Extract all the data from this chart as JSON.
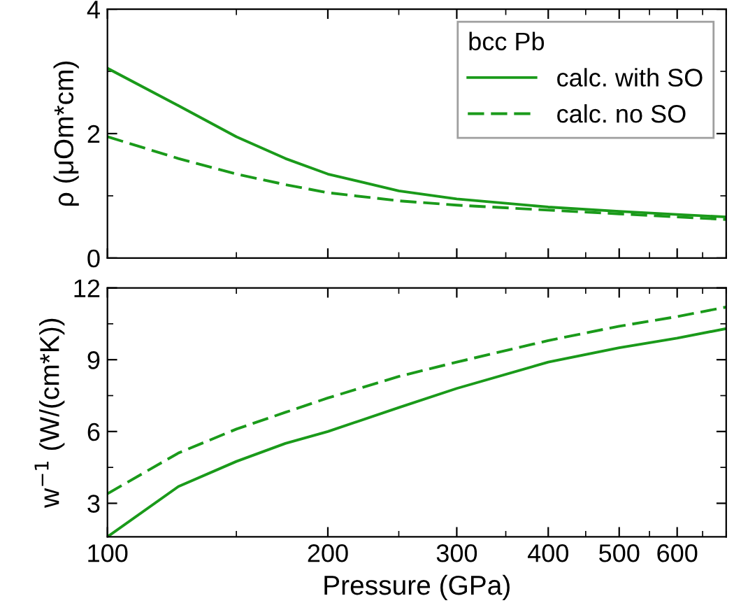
{
  "chart_data": [
    {
      "type": "line",
      "ylabel": "ρ (μOm*cm)",
      "legend_title": "bcc Pb",
      "legend": "top right",
      "log": "x",
      "grid": false,
      "tick_labels": "y",
      "x": [
        100,
        125,
        150,
        175,
        200,
        250,
        300,
        400,
        500,
        600,
        700
      ],
      "xlim": [
        100,
        700
      ],
      "xticks": [
        100,
        200,
        300,
        400,
        500,
        600
      ],
      "ylim": [
        0,
        4
      ],
      "yticks": [
        0,
        2,
        4
      ],
      "series": [
        {
          "name": "calc. with SO",
          "color": "#1a9a1a",
          "line_style": "solid",
          "values": [
            3.05,
            2.45,
            1.95,
            1.6,
            1.35,
            1.08,
            0.95,
            0.82,
            0.75,
            0.7,
            0.66
          ]
        },
        {
          "name": "calc. no SO",
          "color": "#1a9a1a",
          "line_style": "dashed",
          "values": [
            1.95,
            1.6,
            1.35,
            1.18,
            1.05,
            0.92,
            0.85,
            0.77,
            0.71,
            0.66,
            0.62
          ]
        }
      ]
    },
    {
      "type": "line",
      "xlabel": "Pressure (GPa)",
      "ylabel": "w$^{−1}$ (W/(cm*K))",
      "log": "x",
      "grid": false,
      "x": [
        100,
        125,
        150,
        175,
        200,
        250,
        300,
        400,
        500,
        600,
        700
      ],
      "xlim": [
        100,
        700
      ],
      "xticks": [
        100,
        200,
        300,
        400,
        500,
        600
      ],
      "ylim": [
        1.6,
        12
      ],
      "yticks": [
        3,
        6,
        9,
        12
      ],
      "series": [
        {
          "color": "#1a9a1a",
          "line_style": "solid",
          "values": [
            1.6,
            3.7,
            4.75,
            5.5,
            6.0,
            7.0,
            7.8,
            8.9,
            9.5,
            9.9,
            10.3
          ]
        },
        {
          "color": "#1a9a1a",
          "line_style": "dashed",
          "values": [
            3.4,
            5.1,
            6.1,
            6.8,
            7.4,
            8.3,
            8.9,
            9.8,
            10.4,
            10.8,
            11.2
          ]
        }
      ]
    }
  ]
}
